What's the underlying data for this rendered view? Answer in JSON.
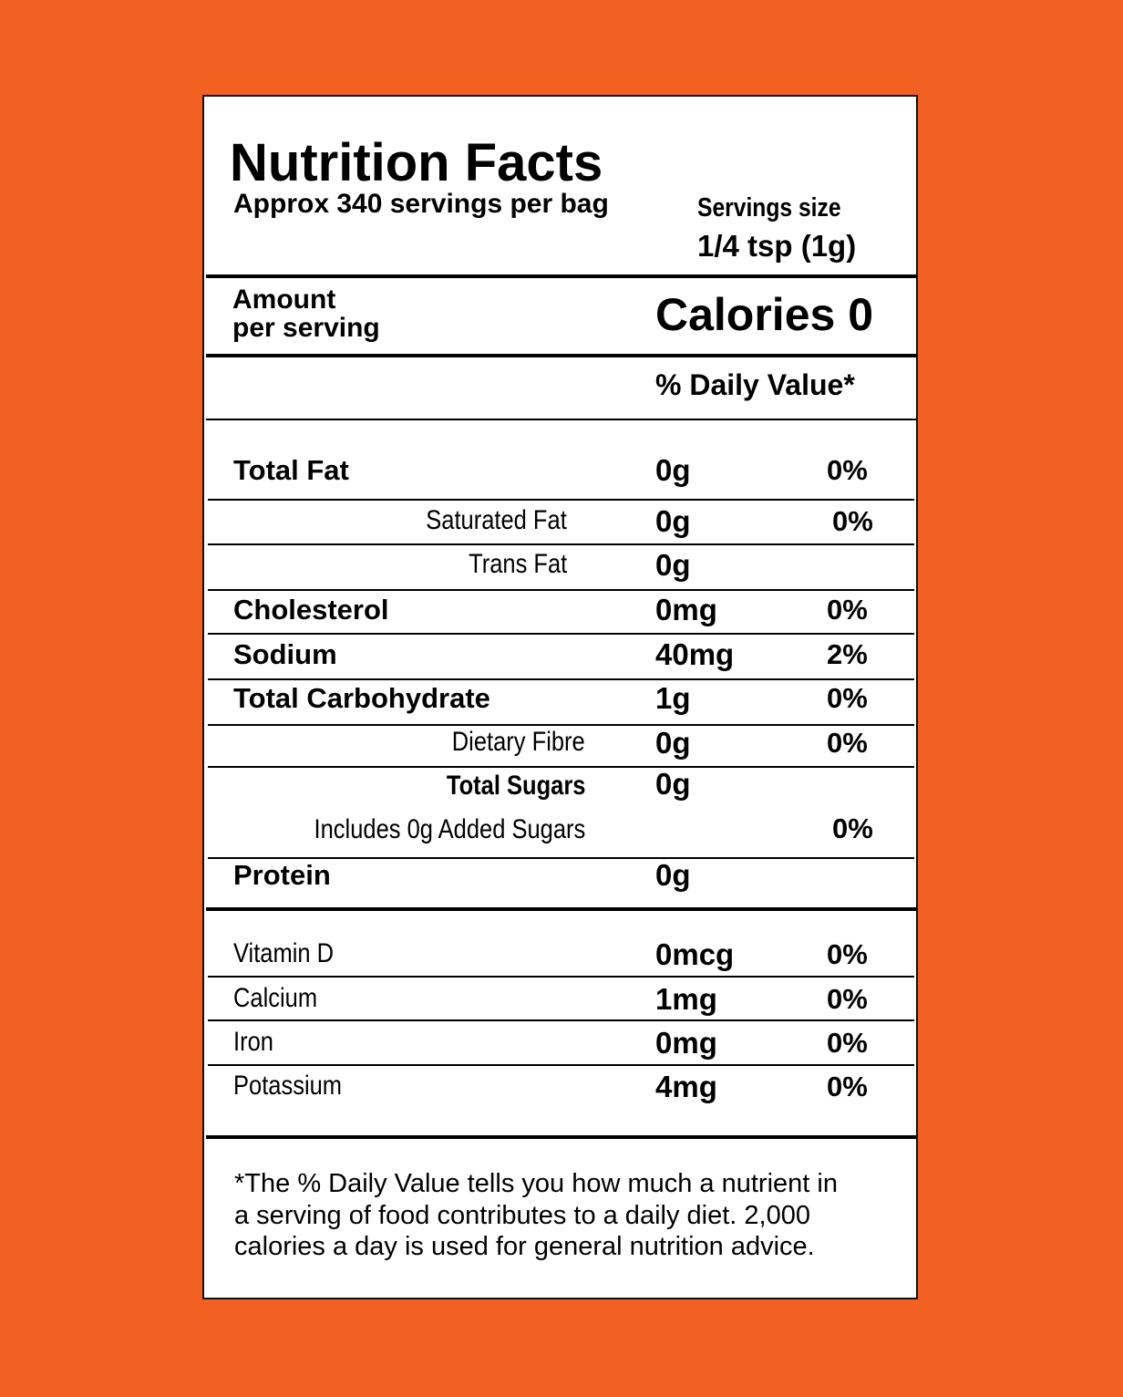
{
  "colors": {
    "background": "#F26122",
    "label": "#FFFFFF",
    "text": "#000000"
  },
  "header": {
    "title": "Nutrition Facts",
    "servings_per_container": "Approx 340 servings per bag",
    "serving_size_label": "Servings size",
    "serving_size_value": "1/4 tsp (1g)"
  },
  "calories": {
    "amount_label_1": "Amount",
    "amount_label_2": "per serving",
    "calories_text": "Calories 0"
  },
  "daily_value_header": "% Daily Value*",
  "nutrients": [
    {
      "label": "Total Fat",
      "amount": "0g",
      "dv": "0%"
    },
    {
      "label": "Saturated Fat",
      "amount": "0g",
      "dv": "0%"
    },
    {
      "label": "Trans Fat",
      "amount": "0g",
      "dv": ""
    },
    {
      "label": "Cholesterol",
      "amount": "0mg",
      "dv": "0%"
    },
    {
      "label": "Sodium",
      "amount": "40mg",
      "dv": "2%"
    },
    {
      "label": "Total Carbohydrate",
      "amount": "1g",
      "dv": "0%"
    },
    {
      "label": "Dietary Fibre",
      "amount": "0g",
      "dv": "0%"
    },
    {
      "label": "Total Sugars",
      "amount": "0g",
      "dv": ""
    },
    {
      "label": "Includes 0g Added Sugars",
      "amount": "",
      "dv": "0%"
    },
    {
      "label": "Protein",
      "amount": "0g",
      "dv": ""
    }
  ],
  "vitamins": [
    {
      "label": "Vitamin D",
      "amount": "0mcg",
      "dv": "0%"
    },
    {
      "label": "Calcium",
      "amount": "1mg",
      "dv": "0%"
    },
    {
      "label": "Iron",
      "amount": "0mg",
      "dv": "0%"
    },
    {
      "label": "Potassium",
      "amount": "4mg",
      "dv": "0%"
    }
  ],
  "footnote": {
    "line1": "*The % Daily Value tells you how much a nutrient in",
    "line2": "a serving of food contributes to a daily diet. 2,000",
    "line3": "calories a day is used for general nutrition advice."
  }
}
